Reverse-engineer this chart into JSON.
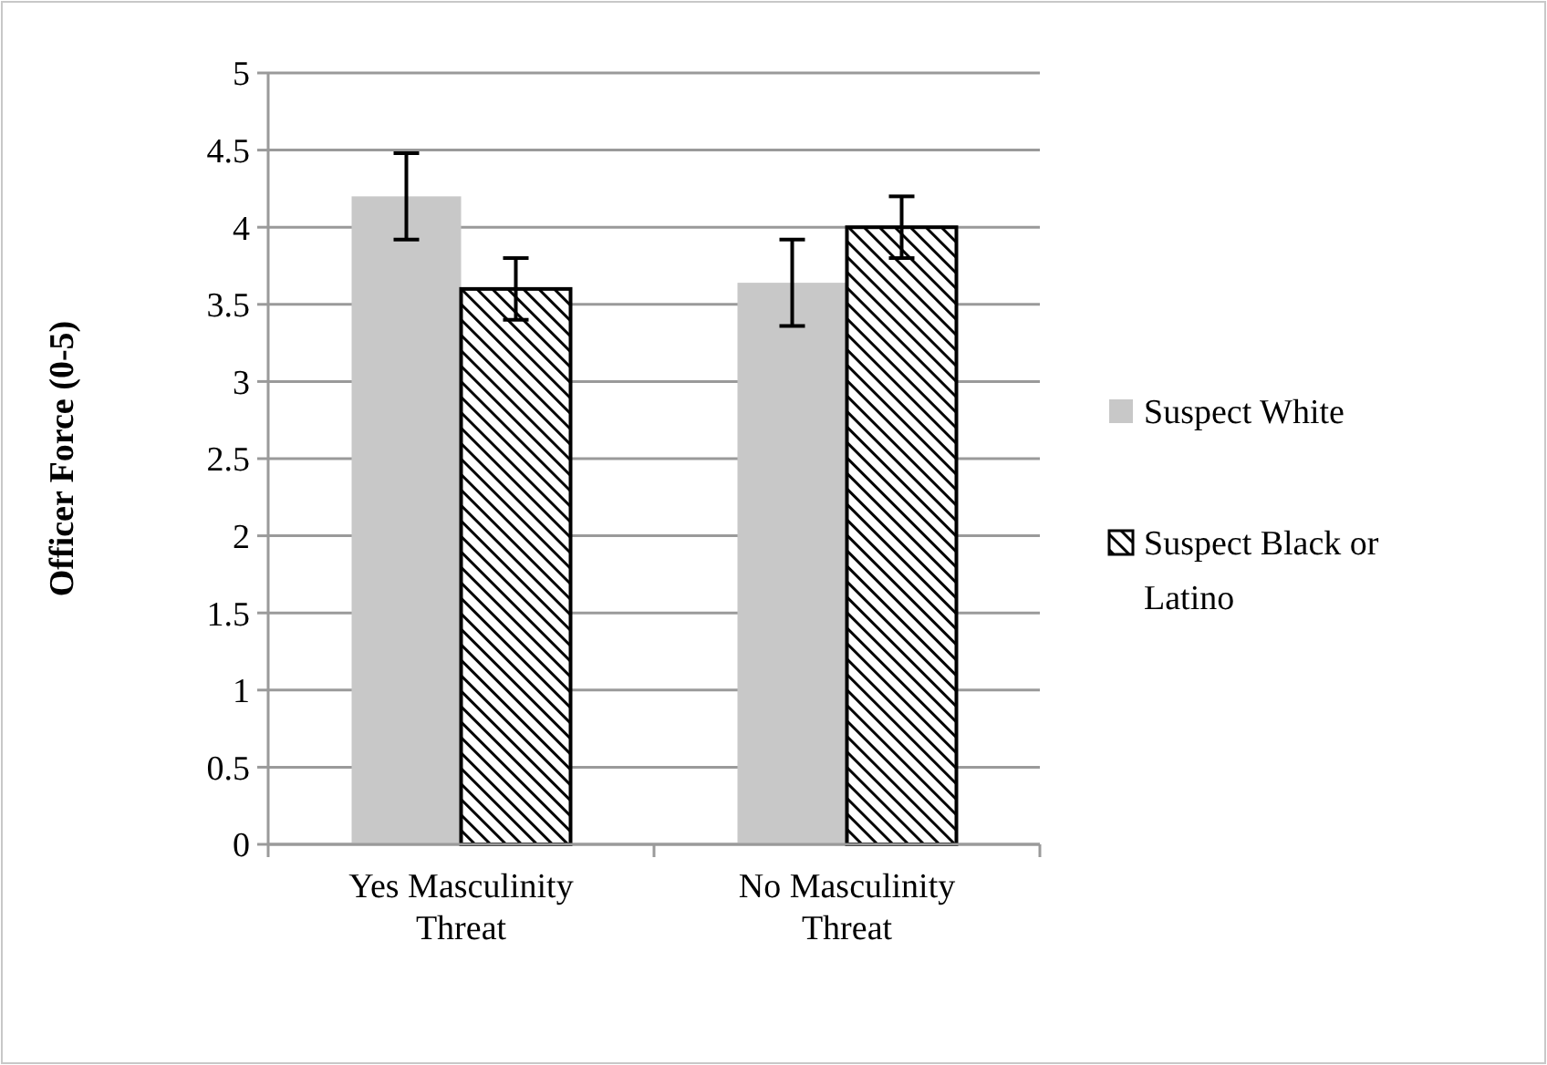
{
  "chart_data": {
    "type": "bar",
    "ylabel": "Officer Force (0-5)",
    "categories": [
      "Yes Masculinity Threat",
      "No Masculinity Threat"
    ],
    "series": [
      {
        "name": "Suspect White",
        "color": "#c8c8c8",
        "values": [
          4.2,
          3.64
        ],
        "errors": [
          0.28,
          0.28
        ]
      },
      {
        "name": "Suspect Black or Latino",
        "color": "#000000",
        "values": [
          3.6,
          4.0
        ],
        "errors": [
          0.2,
          0.2
        ]
      }
    ],
    "ylim": [
      0,
      5
    ],
    "yticks": [
      0,
      0.5,
      1,
      1.5,
      2,
      2.5,
      3,
      3.5,
      4,
      4.5,
      5
    ],
    "grid": "y",
    "legend": "right"
  }
}
